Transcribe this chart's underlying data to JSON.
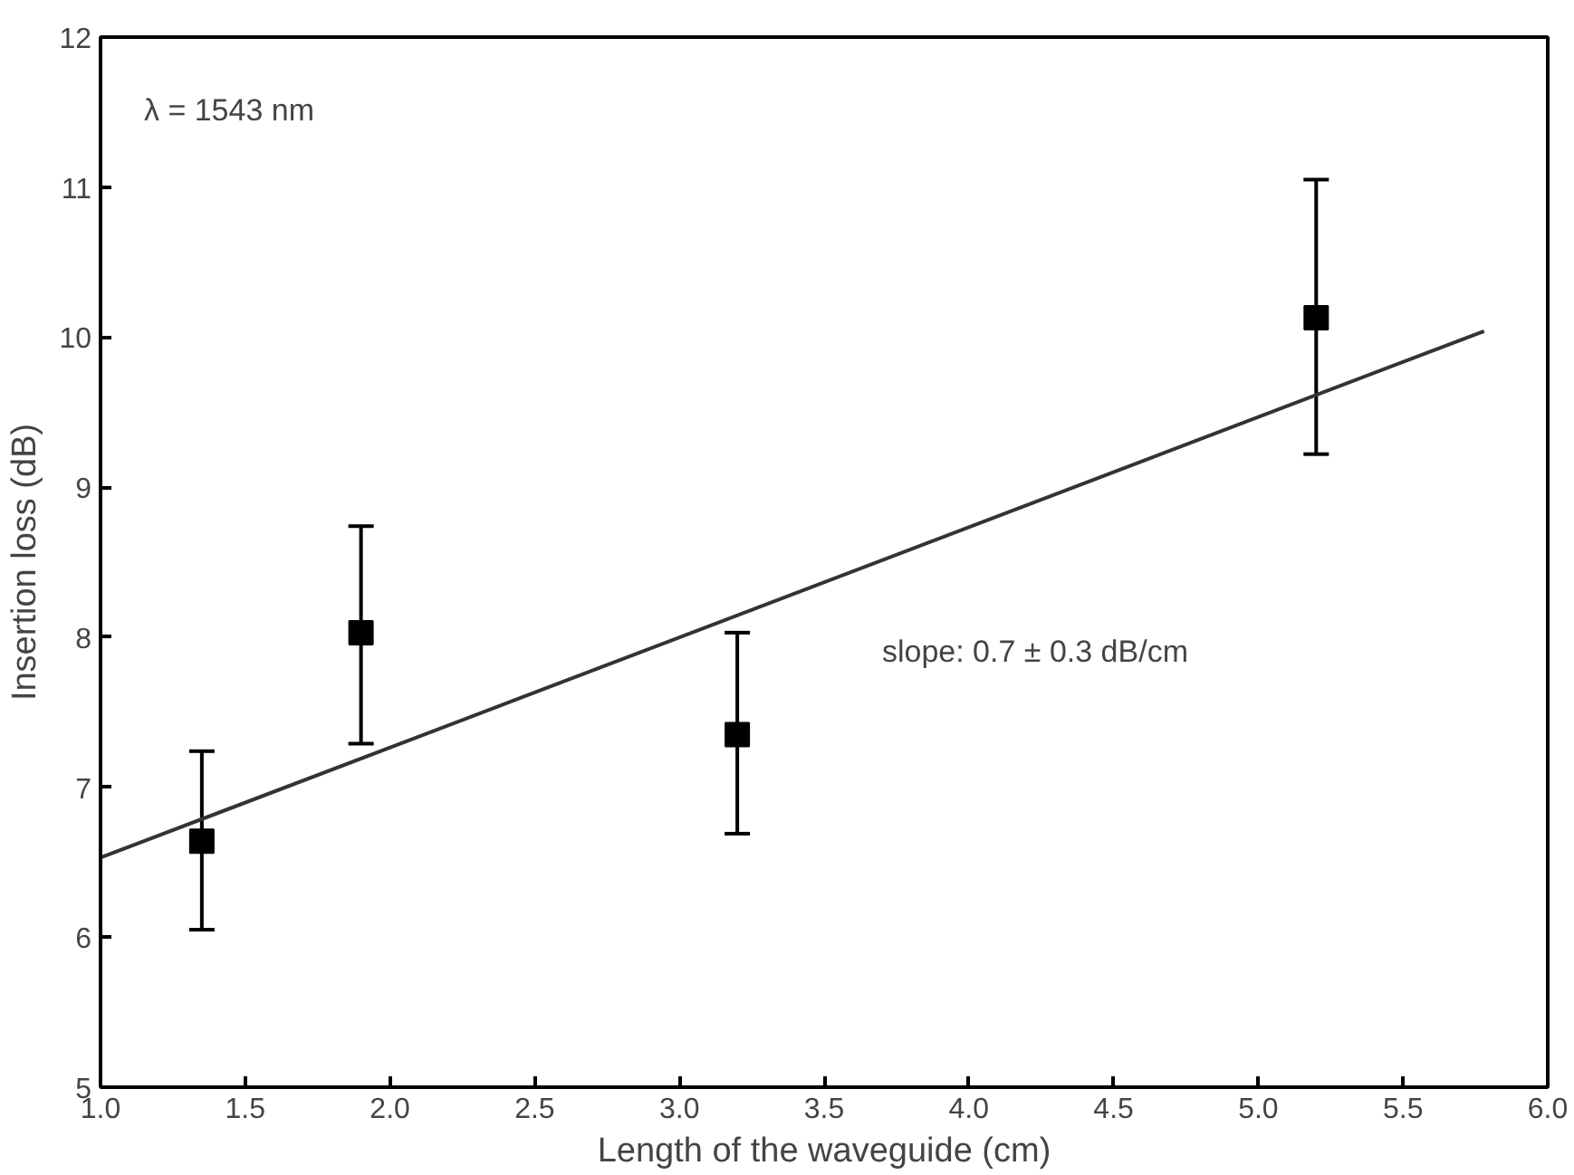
{
  "chart_data": {
    "type": "scatter",
    "xlabel": "Length of the waveguide (cm)",
    "ylabel": "Insertion loss (dB)",
    "xlim": [
      1.0,
      6.0
    ],
    "xticks": [
      {
        "value": 1.0,
        "label": "1.0"
      },
      {
        "value": 1.5,
        "label": "1.5"
      },
      {
        "value": 2.0,
        "label": "2.0"
      },
      {
        "value": 2.5,
        "label": "2.5"
      },
      {
        "value": 3.0,
        "label": "3.0"
      },
      {
        "value": 3.5,
        "label": "3.5"
      },
      {
        "value": 4.0,
        "label": "4.0"
      },
      {
        "value": 4.5,
        "label": "4.5"
      },
      {
        "value": 5.0,
        "label": "5.0"
      },
      {
        "value": 5.5,
        "label": "5.5"
      },
      {
        "value": 6.0,
        "label": "6.0"
      }
    ],
    "ylim": [
      5,
      12
    ],
    "yticks": [
      5,
      6,
      7,
      8,
      9,
      10,
      11,
      12
    ],
    "grid": false,
    "marker": "square",
    "series": [
      {
        "color": "#000000",
        "x": [
          1.35,
          1.9,
          3.2,
          5.2
        ],
        "values": [
          6.64,
          8.03,
          7.35,
          10.13
        ],
        "errors": [
          [
            6.05,
            7.24
          ],
          [
            7.29,
            8.74
          ],
          [
            6.69,
            8.03
          ],
          [
            9.22,
            11.05
          ]
        ]
      },
      {
        "type": "line",
        "color": "#333333",
        "x": [
          1.0,
          5.78
        ],
        "values": [
          6.53,
          10.04
        ],
        "line_style": "solid",
        "marker": "none"
      }
    ],
    "annotations": [
      "λ = 1543 nm",
      "slope: 0.7 ± 0.3 dB/cm"
    ]
  }
}
